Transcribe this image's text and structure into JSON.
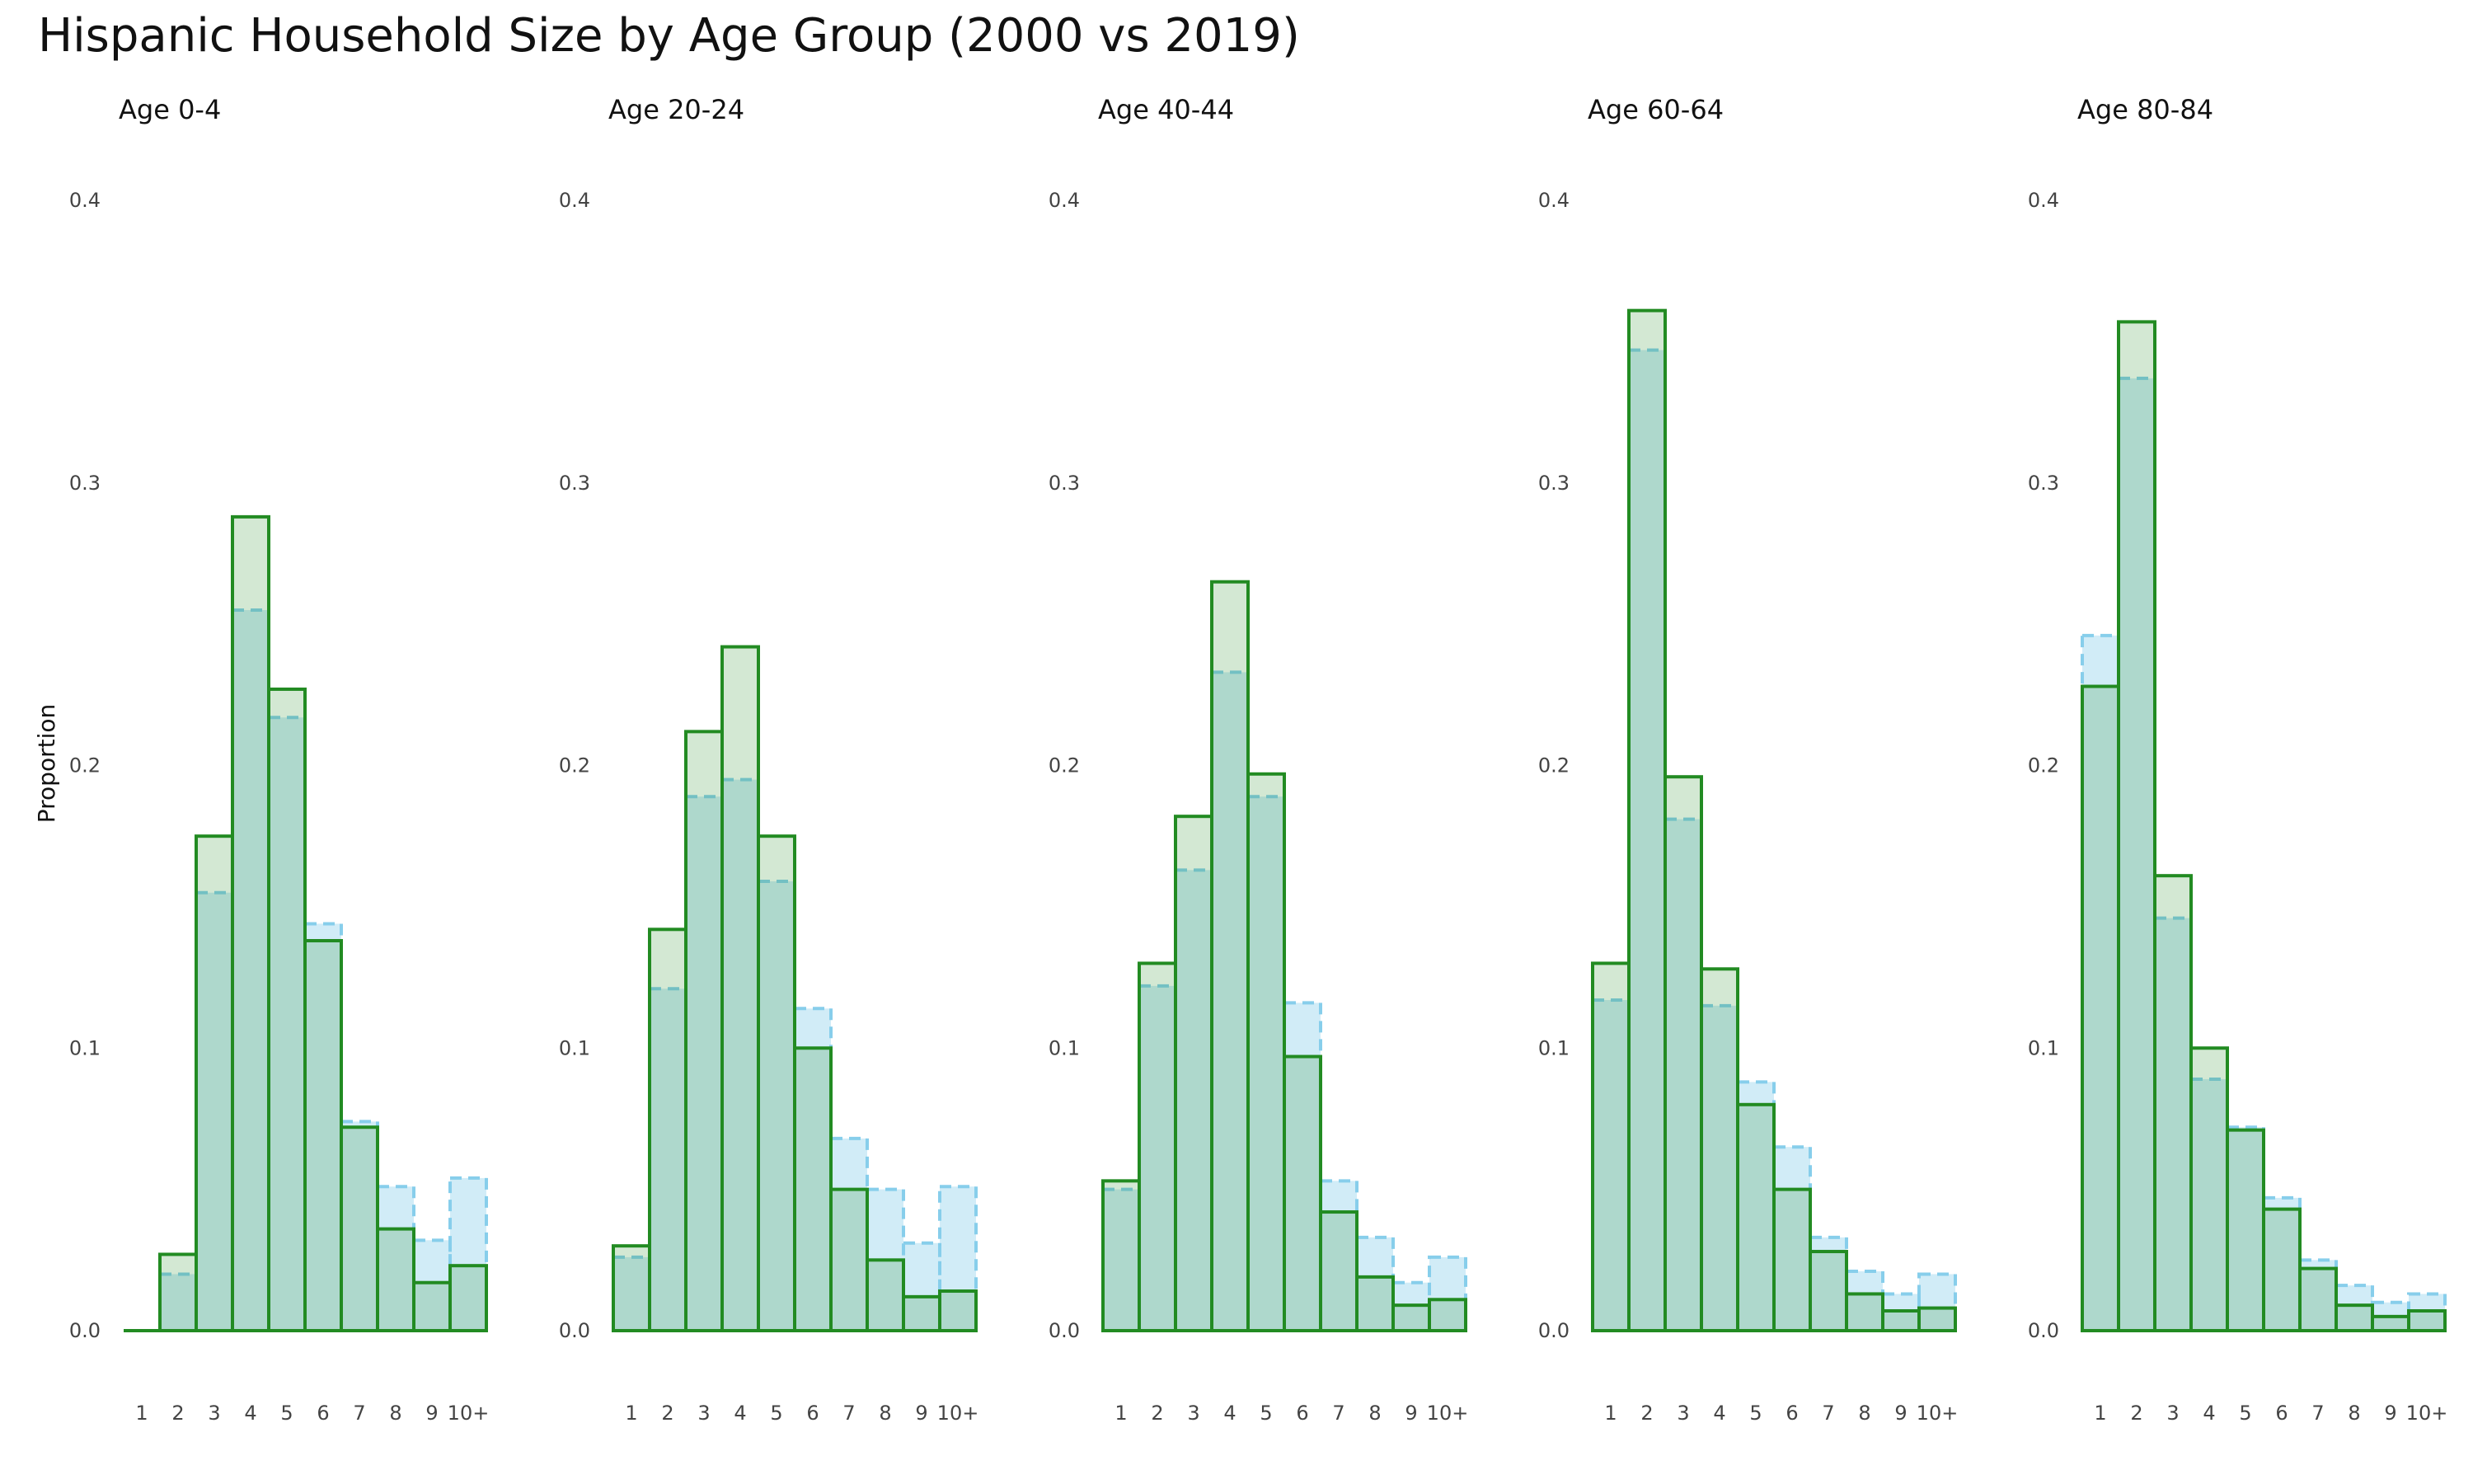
{
  "colors": {
    "series_2000": "#228b22",
    "series_2019": "#87ceeb",
    "background": "#ffffff"
  },
  "chart_data": {
    "type": "bar",
    "title": "Hispanic Household Size by Age Group (2000 vs 2019)",
    "ylabel": "Proportion",
    "xlabel": "",
    "ylim": [
      0,
      0.4
    ],
    "yticks": [
      "0.0",
      "0.1",
      "0.2",
      "0.3",
      "0.4"
    ],
    "categories": [
      "1",
      "2",
      "3",
      "4",
      "5",
      "6",
      "7",
      "8",
      "9",
      "10+"
    ],
    "grid": false,
    "legend": "none",
    "panels": [
      {
        "title": "Age 0-4",
        "series": [
          {
            "values": [
              0.0,
              0.027,
              0.175,
              0.288,
              0.227,
              0.138,
              0.072,
              0.036,
              0.017,
              0.023
            ]
          },
          {
            "values": [
              0.0,
              0.02,
              0.155,
              0.255,
              0.217,
              0.144,
              0.074,
              0.051,
              0.032,
              0.054
            ]
          }
        ]
      },
      {
        "title": "Age 20-24",
        "series": [
          {
            "values": [
              0.03,
              0.142,
              0.212,
              0.242,
              0.175,
              0.1,
              0.05,
              0.025,
              0.012,
              0.014
            ]
          },
          {
            "values": [
              0.026,
              0.121,
              0.189,
              0.195,
              0.159,
              0.114,
              0.068,
              0.05,
              0.031,
              0.051
            ]
          }
        ]
      },
      {
        "title": "Age 40-44",
        "series": [
          {
            "values": [
              0.053,
              0.13,
              0.182,
              0.265,
              0.197,
              0.097,
              0.042,
              0.019,
              0.009,
              0.011
            ]
          },
          {
            "values": [
              0.05,
              0.122,
              0.163,
              0.233,
              0.189,
              0.116,
              0.053,
              0.033,
              0.017,
              0.026
            ]
          }
        ]
      },
      {
        "title": "Age 60-64",
        "series": [
          {
            "values": [
              0.13,
              0.361,
              0.196,
              0.128,
              0.08,
              0.05,
              0.028,
              0.013,
              0.007,
              0.008
            ]
          },
          {
            "values": [
              0.117,
              0.347,
              0.181,
              0.115,
              0.088,
              0.065,
              0.033,
              0.021,
              0.013,
              0.02
            ]
          }
        ]
      },
      {
        "title": "Age 80-84",
        "series": [
          {
            "values": [
              0.228,
              0.357,
              0.161,
              0.1,
              0.071,
              0.043,
              0.022,
              0.009,
              0.005,
              0.007
            ]
          },
          {
            "values": [
              0.246,
              0.337,
              0.146,
              0.089,
              0.072,
              0.047,
              0.025,
              0.016,
              0.01,
              0.013
            ]
          }
        ]
      }
    ]
  }
}
